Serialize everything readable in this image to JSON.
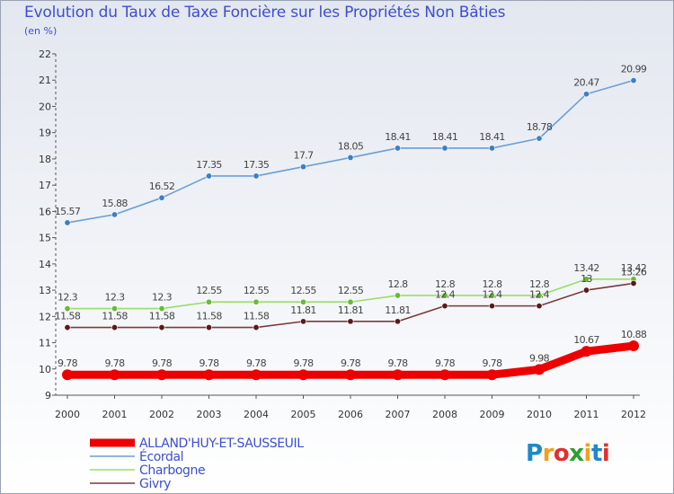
{
  "title": "Evolution du Taux de Taxe Foncière sur les Propriétés Non Bâties",
  "subtitle": "(en %)",
  "logo": {
    "text": "Proxiti",
    "colors": [
      "#1e88c8",
      "#f0a020",
      "#e03030",
      "#2ca02c",
      "#f0a020",
      "#1e88c8",
      "#e03030"
    ]
  },
  "chart_data": {
    "type": "line",
    "title": "Evolution du Taux de Taxe Foncière sur les Propriétés Non Bâties",
    "ylabel": "(en %)",
    "xlabel": "",
    "ylim": [
      9,
      22
    ],
    "grid": false,
    "legend_position": "bottom-left",
    "x": [
      "2000",
      "2001",
      "2002",
      "2003",
      "2004",
      "2005",
      "2006",
      "2007",
      "2008",
      "2009",
      "2010",
      "2011",
      "2012"
    ],
    "y_ticks": [
      "9",
      "10",
      "11",
      "12",
      "13",
      "14",
      "15",
      "16",
      "17",
      "18",
      "19",
      "20",
      "21",
      "22"
    ],
    "series": [
      {
        "name": "ALLAND'HUY-ET-SAUSSEUIL",
        "color": "#ee0000",
        "style": "thick",
        "values": [
          9.78,
          9.78,
          9.78,
          9.78,
          9.78,
          9.78,
          9.78,
          9.78,
          9.78,
          9.78,
          9.98,
          10.67,
          10.88
        ],
        "labels": [
          "9.78",
          "9.78",
          "9.78",
          "9.78",
          "9.78",
          "9.78",
          "9.78",
          "9.78",
          "9.78",
          "9.78",
          "9.98",
          "10.67",
          "10.88"
        ]
      },
      {
        "name": "Écordal",
        "color": "#6b9fd3",
        "marker": "#3b7fc4",
        "values": [
          15.57,
          15.88,
          16.52,
          17.35,
          17.35,
          17.7,
          18.05,
          18.41,
          18.41,
          18.41,
          18.78,
          20.47,
          20.99
        ],
        "labels": [
          "15.57",
          "15.88",
          "16.52",
          "17.35",
          "17.35",
          "17.7",
          "18.05",
          "18.41",
          "18.41",
          "18.41",
          "18.78",
          "20.47",
          "20.99"
        ]
      },
      {
        "name": "Charbogne",
        "color": "#99dd66",
        "marker": "#66bb33",
        "values": [
          12.3,
          12.3,
          12.3,
          12.55,
          12.55,
          12.55,
          12.55,
          12.8,
          12.8,
          12.8,
          12.8,
          13.42,
          13.42
        ],
        "labels": [
          "12.3",
          "12.3",
          "12.3",
          "12.55",
          "12.55",
          "12.55",
          "12.55",
          "12.8",
          "12.8",
          "12.8",
          "12.8",
          "13.42",
          "13.42"
        ]
      },
      {
        "name": "Givry",
        "color": "#7a3a3a",
        "marker": "#5a1a1a",
        "values": [
          11.58,
          11.58,
          11.58,
          11.58,
          11.58,
          11.81,
          11.81,
          11.81,
          12.4,
          12.4,
          12.4,
          13,
          13.26
        ],
        "labels": [
          "11.58",
          "11.58",
          "11.58",
          "11.58",
          "11.58",
          "11.81",
          "11.81",
          "11.81",
          "12.4",
          "12.4",
          "12.4",
          "13",
          "13.26"
        ]
      }
    ]
  }
}
